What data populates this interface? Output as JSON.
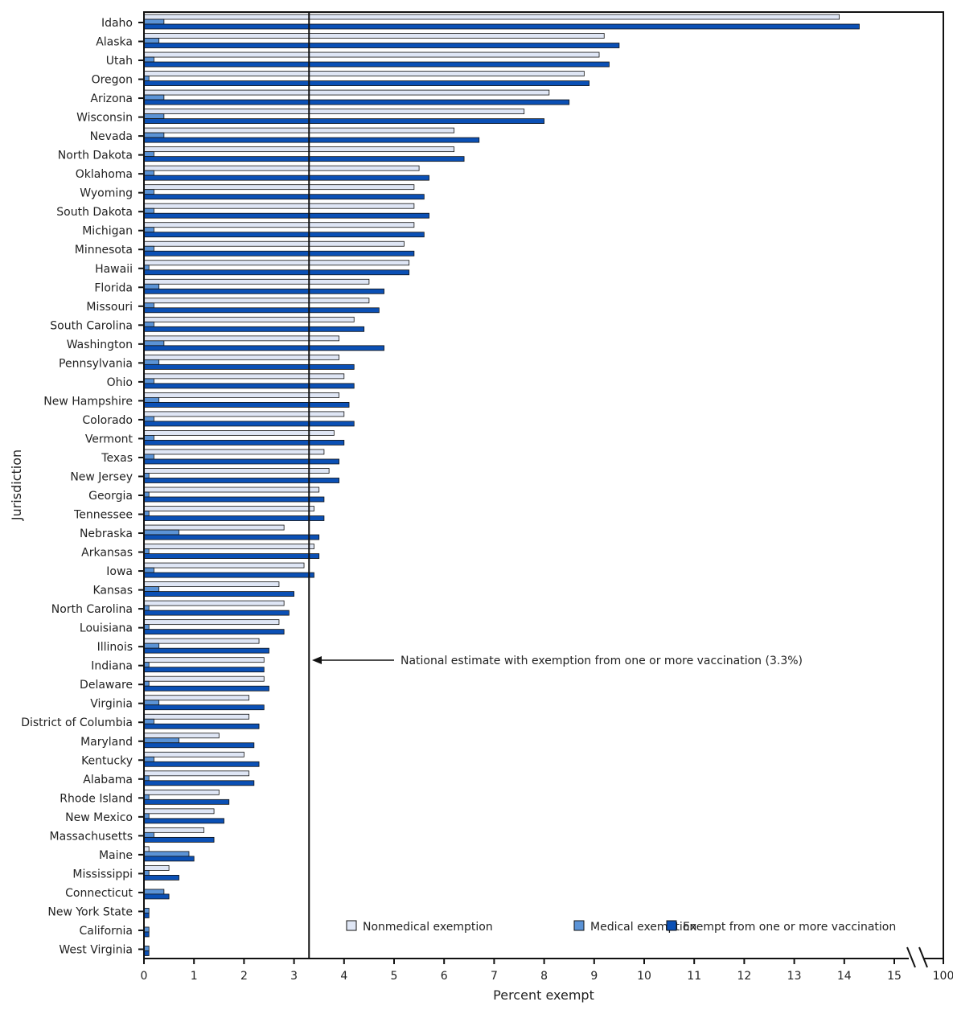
{
  "chart_data": {
    "type": "bar",
    "orientation": "horizontal",
    "xlabel": "Percent exempt",
    "ylabel": "Jurisdiction",
    "xlim": [
      0,
      15
    ],
    "x_ticks": [
      "0",
      "1",
      "2",
      "3",
      "4",
      "5",
      "6",
      "7",
      "8",
      "9",
      "10",
      "11",
      "12",
      "13",
      "14",
      "15",
      "100"
    ],
    "axis_break": "between 15 and 100",
    "grid": false,
    "legend_position": "bottom-right",
    "colors": {
      "Nonmedical exemption": "#dfe6f5",
      "Medical exemption": "#5b93d6",
      "Exempt from one or more vaccination": "#0b50b5"
    },
    "categories": [
      "Idaho",
      "Alaska",
      "Utah",
      "Oregon",
      "Arizona",
      "Wisconsin",
      "Nevada",
      "North Dakota",
      "Oklahoma",
      "Wyoming",
      "South Dakota",
      "Michigan",
      "Minnesota",
      "Hawaii",
      "Florida",
      "Missouri",
      "South Carolina",
      "Washington",
      "Pennsylvania",
      "Ohio",
      "New Hampshire",
      "Colorado",
      "Vermont",
      "Texas",
      "New Jersey",
      "Georgia",
      "Tennessee",
      "Nebraska",
      "Arkansas",
      "Iowa",
      "Kansas",
      "North Carolina",
      "Louisiana",
      "Illinois",
      "Indiana",
      "Delaware",
      "Virginia",
      "District of Columbia",
      "Maryland",
      "Kentucky",
      "Alabama",
      "Rhode Island",
      "New Mexico",
      "Massachusetts",
      "Maine",
      "Mississippi",
      "Connecticut",
      "New York State",
      "California",
      "West Virginia"
    ],
    "series": [
      {
        "name": "Nonmedical exemption",
        "values": [
          13.9,
          9.2,
          9.1,
          8.8,
          8.1,
          7.6,
          6.2,
          6.2,
          5.5,
          5.4,
          5.4,
          5.4,
          5.2,
          5.3,
          4.5,
          4.5,
          4.2,
          3.9,
          3.9,
          4.0,
          3.9,
          4.0,
          3.8,
          3.6,
          3.7,
          3.5,
          3.4,
          2.8,
          3.4,
          3.2,
          2.7,
          2.8,
          2.7,
          2.3,
          2.4,
          2.4,
          2.1,
          2.1,
          1.5,
          2.0,
          2.1,
          1.5,
          1.4,
          1.2,
          0.1,
          0.5,
          0,
          0,
          0,
          0
        ]
      },
      {
        "name": "Medical exemption",
        "values": [
          0.4,
          0.3,
          0.2,
          0.1,
          0.4,
          0.4,
          0.4,
          0.2,
          0.2,
          0.2,
          0.2,
          0.2,
          0.2,
          0.1,
          0.3,
          0.2,
          0.2,
          0.4,
          0.3,
          0.2,
          0.3,
          0.2,
          0.2,
          0.2,
          0.1,
          0.1,
          0.1,
          0.7,
          0.1,
          0.2,
          0.3,
          0.1,
          0.1,
          0.3,
          0.1,
          0.1,
          0.3,
          0.2,
          0.7,
          0.2,
          0.1,
          0.1,
          0.1,
          0.2,
          0.9,
          0.1,
          0.4,
          0.1,
          0.1,
          0.1
        ]
      },
      {
        "name": "Exempt from one or more vaccination",
        "values": [
          14.3,
          9.5,
          9.3,
          8.9,
          8.5,
          8.0,
          6.7,
          6.4,
          5.7,
          5.6,
          5.7,
          5.6,
          5.4,
          5.3,
          4.8,
          4.7,
          4.4,
          4.8,
          4.2,
          4.2,
          4.1,
          4.2,
          4.0,
          3.9,
          3.9,
          3.6,
          3.6,
          3.5,
          3.5,
          3.4,
          3.0,
          2.9,
          2.8,
          2.5,
          2.4,
          2.5,
          2.4,
          2.3,
          2.2,
          2.3,
          2.2,
          1.7,
          1.6,
          1.4,
          1.0,
          0.7,
          0.5,
          0.1,
          0.1,
          0.1
        ]
      }
    ],
    "reference_line": {
      "value": 3.3,
      "label": "National estimate with exemption from one or more vaccination (3.3%)"
    }
  }
}
